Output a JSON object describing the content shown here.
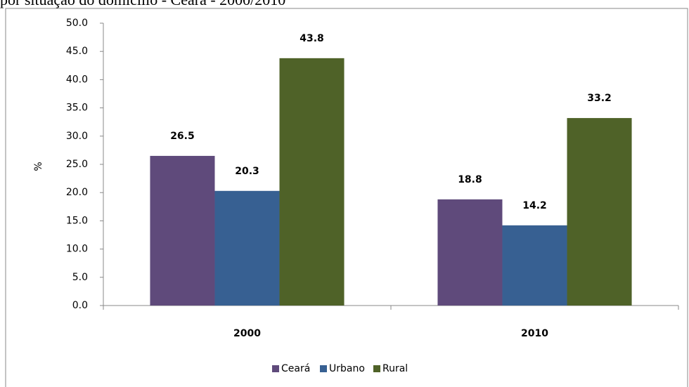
{
  "chart_data": {
    "type": "bar",
    "title": "por situação do domicílio - Ceará - 2000/2010",
    "y_label": "%",
    "categories": [
      "2000",
      "2010"
    ],
    "series": [
      {
        "name": "Ceará",
        "color": "#5f4a7b",
        "values": [
          26.5,
          18.8
        ]
      },
      {
        "name": "Urbano",
        "color": "#376092",
        "values": [
          20.3,
          14.2
        ]
      },
      {
        "name": "Rural",
        "color": "#4f6228",
        "values": [
          43.8,
          33.2
        ]
      }
    ],
    "ylim": [
      0,
      50
    ],
    "yticks": [
      {
        "value": 0,
        "label": "0.0"
      },
      {
        "value": 5,
        "label": "5.0"
      },
      {
        "value": 10,
        "label": "10.0"
      },
      {
        "value": 15,
        "label": "15.0"
      },
      {
        "value": 20,
        "label": "20.0"
      },
      {
        "value": 25,
        "label": "25.0"
      },
      {
        "value": 30,
        "label": "30.0"
      },
      {
        "value": 35,
        "label": "35.0"
      },
      {
        "value": 40,
        "label": "40.0"
      },
      {
        "value": 45,
        "label": "45.0"
      },
      {
        "value": 50,
        "label": "50.0"
      }
    ],
    "grid": false,
    "legend": "bottom"
  }
}
